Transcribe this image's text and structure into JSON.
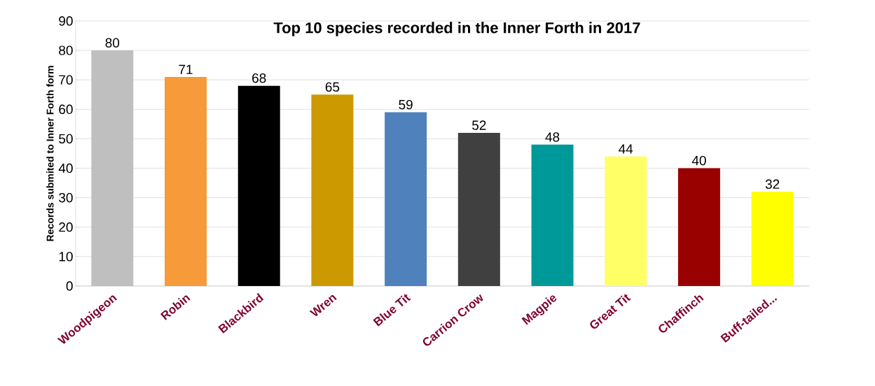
{
  "chart_data": {
    "type": "bar",
    "title": "Top 10 species recorded in the Inner Forth in 2017",
    "ylabel": "Records submited to Inner Forth form",
    "categories": [
      "Woodpigeon",
      "Robin",
      "Blackbird",
      "Wren",
      "Blue Tit",
      "Carrion Crow",
      "Magpie",
      "Great Tit",
      "Chaffinch",
      "Buff-tailed..."
    ],
    "values": [
      80,
      71,
      68,
      65,
      59,
      52,
      48,
      44,
      40,
      32
    ],
    "colors": [
      "#bfbfbf",
      "#f79a3a",
      "#000000",
      "#cc9900",
      "#4f81bd",
      "#404040",
      "#009999",
      "#ffff66",
      "#990000",
      "#ffff00"
    ],
    "ylim": [
      0,
      90
    ],
    "yticks": [
      0,
      10,
      20,
      30,
      40,
      50,
      60,
      70,
      80,
      90
    ],
    "grid": "y",
    "data_labels": true
  }
}
